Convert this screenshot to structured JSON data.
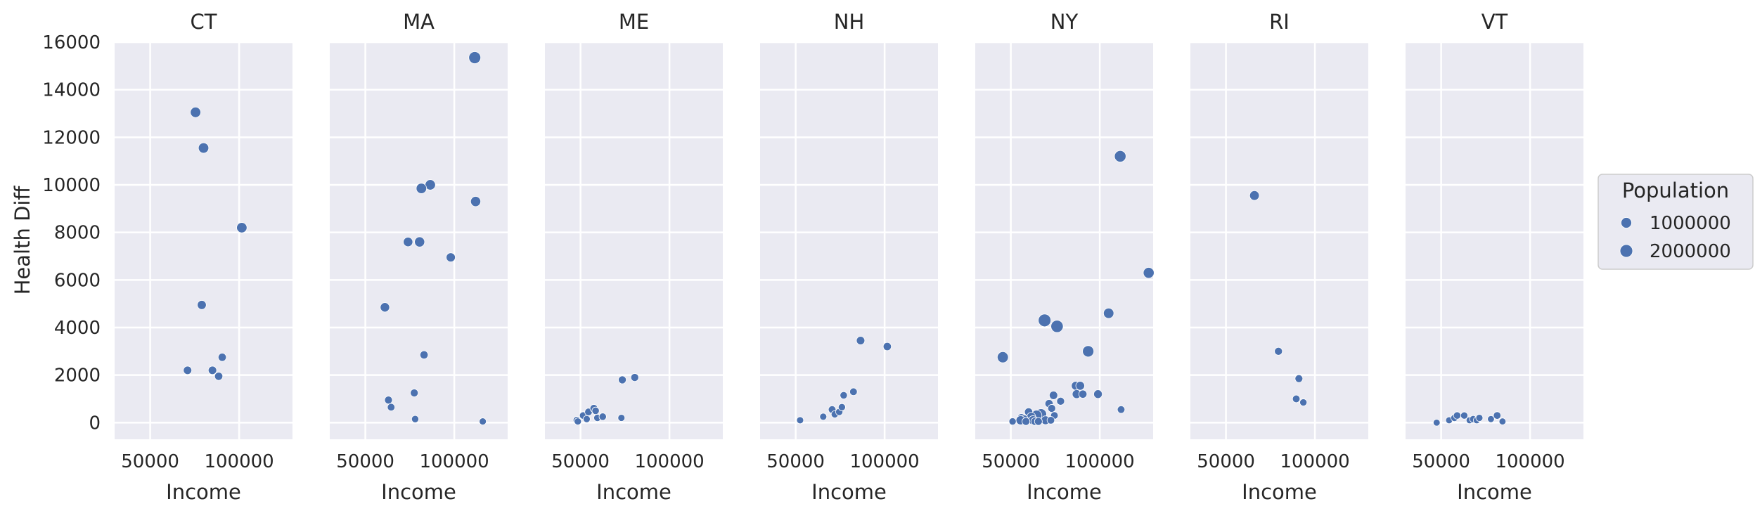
{
  "chart_data": {
    "type": "scatter",
    "facet_by": "state",
    "xlabel": "Income",
    "ylabel": "Health Diff",
    "xlim": [
      30000,
      130000
    ],
    "ylim": [
      -700,
      16000
    ],
    "xticks": [
      50000,
      100000
    ],
    "yticks": [
      0,
      2000,
      4000,
      6000,
      8000,
      10000,
      12000,
      14000,
      16000
    ],
    "grid": true,
    "marker_color": "#4c72b0",
    "background_color": "#eaeaf2",
    "legend": {
      "title": "Population",
      "position": "right",
      "entries": [
        {
          "label": "1000000",
          "population": 1000000
        },
        {
          "label": "2000000",
          "population": 2000000
        }
      ]
    },
    "facets": [
      {
        "name": "CT",
        "points": [
          [
            75500,
            13050,
            950000
          ],
          [
            80000,
            11550,
            900000
          ],
          [
            101500,
            8200,
            900000
          ],
          [
            79000,
            4950,
            450000
          ],
          [
            71000,
            2200,
            300000
          ],
          [
            85000,
            2200,
            300000
          ],
          [
            88500,
            1950,
            250000
          ],
          [
            90500,
            2750,
            250000
          ]
        ]
      },
      {
        "name": "MA",
        "points": [
          [
            111500,
            15350,
            1600000
          ],
          [
            86500,
            10000,
            900000
          ],
          [
            81500,
            9850,
            900000
          ],
          [
            112000,
            9300,
            800000
          ],
          [
            74000,
            7600,
            600000
          ],
          [
            80500,
            7600,
            800000
          ],
          [
            98000,
            6950,
            500000
          ],
          [
            61000,
            4850,
            550000
          ],
          [
            83000,
            2850,
            250000
          ],
          [
            77500,
            1250,
            200000
          ],
          [
            63000,
            950,
            200000
          ],
          [
            64500,
            650,
            150000
          ],
          [
            78000,
            150,
            100000
          ],
          [
            116000,
            50,
            80000
          ]
        ]
      },
      {
        "name": "ME",
        "points": [
          [
            48000,
            100,
            150000
          ],
          [
            48500,
            50,
            80000
          ],
          [
            51500,
            300,
            120000
          ],
          [
            53500,
            150,
            80000
          ],
          [
            54500,
            450,
            150000
          ],
          [
            57500,
            600,
            180000
          ],
          [
            58500,
            500,
            120000
          ],
          [
            59500,
            200,
            100000
          ],
          [
            62500,
            250,
            120000
          ],
          [
            73000,
            200,
            80000
          ],
          [
            73500,
            1800,
            200000
          ],
          [
            80500,
            1900,
            200000
          ]
        ]
      },
      {
        "name": "NH",
        "points": [
          [
            52500,
            100,
            80000
          ],
          [
            65500,
            250,
            80000
          ],
          [
            70500,
            550,
            150000
          ],
          [
            72000,
            350,
            100000
          ],
          [
            74500,
            450,
            100000
          ],
          [
            76000,
            650,
            100000
          ],
          [
            77000,
            1150,
            120000
          ],
          [
            82500,
            1300,
            150000
          ],
          [
            86500,
            3450,
            300000
          ],
          [
            101500,
            3200,
            250000
          ]
        ]
      },
      {
        "name": "NY",
        "points": [
          [
            111500,
            11200,
            1400000
          ],
          [
            127500,
            6300,
            1100000
          ],
          [
            105000,
            4600,
            900000
          ],
          [
            69000,
            4300,
            2000000
          ],
          [
            76000,
            4050,
            1800000
          ],
          [
            93500,
            3000,
            1300000
          ],
          [
            45500,
            2750,
            1200000
          ],
          [
            86500,
            1550,
            400000
          ],
          [
            89000,
            1550,
            400000
          ],
          [
            99000,
            1200,
            350000
          ],
          [
            87000,
            1200,
            400000
          ],
          [
            74000,
            1150,
            300000
          ],
          [
            78000,
            900,
            200000
          ],
          [
            90500,
            1200,
            250000
          ],
          [
            71500,
            800,
            250000
          ],
          [
            73000,
            600,
            200000
          ],
          [
            112000,
            550,
            150000
          ],
          [
            60000,
            450,
            250000
          ],
          [
            67000,
            350,
            1200000
          ],
          [
            64500,
            300,
            1000000
          ],
          [
            61500,
            250,
            400000
          ],
          [
            56000,
            200,
            300000
          ],
          [
            57500,
            150,
            250000
          ],
          [
            55500,
            100,
            500000
          ],
          [
            62500,
            100,
            500000
          ],
          [
            69500,
            100,
            400000
          ],
          [
            74500,
            300,
            150000
          ],
          [
            72500,
            100,
            150000
          ],
          [
            51000,
            50,
            100000
          ],
          [
            58500,
            50,
            200000
          ],
          [
            63500,
            50,
            200000
          ],
          [
            65500,
            50,
            200000
          ]
        ]
      },
      {
        "name": "RI",
        "points": [
          [
            66000,
            9550,
            650000
          ],
          [
            79500,
            3000,
            200000
          ],
          [
            91000,
            1850,
            180000
          ],
          [
            89500,
            1000,
            150000
          ],
          [
            93500,
            850,
            100000
          ]
        ]
      },
      {
        "name": "VT",
        "points": [
          [
            47500,
            0,
            60000
          ],
          [
            54500,
            100,
            60000
          ],
          [
            57500,
            200,
            100000
          ],
          [
            59000,
            300,
            120000
          ],
          [
            63000,
            300,
            100000
          ],
          [
            66000,
            100,
            60000
          ],
          [
            68000,
            150,
            80000
          ],
          [
            70000,
            100,
            60000
          ],
          [
            71500,
            200,
            80000
          ],
          [
            78000,
            150,
            60000
          ],
          [
            81500,
            300,
            150000
          ],
          [
            84500,
            50,
            60000
          ]
        ]
      }
    ]
  }
}
